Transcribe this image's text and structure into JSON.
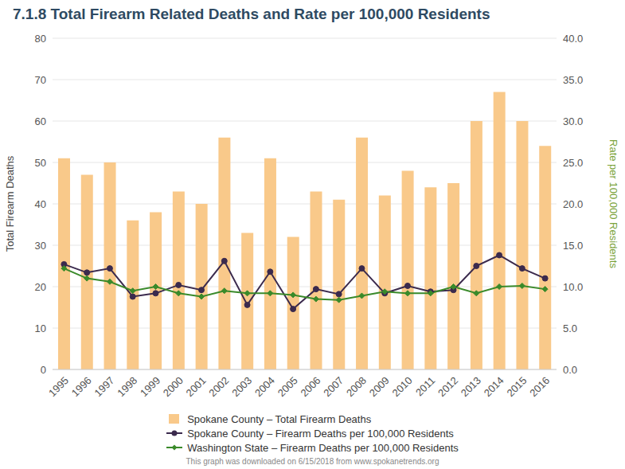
{
  "chart_data": {
    "type": "bar",
    "title": "7.1.8 Total Firearm Related Deaths and Rate per 100,000 Residents",
    "categories": [
      "1995",
      "1996",
      "1997",
      "1998",
      "1999",
      "2000",
      "2001",
      "2002",
      "2003",
      "2004",
      "2005",
      "2006",
      "2007",
      "2008",
      "2009",
      "2010",
      "2011",
      "2012",
      "2013",
      "2014",
      "2015",
      "2016"
    ],
    "ylabel": "Total Firearm Deaths",
    "y2label": "Rate per 100,000 Residents",
    "ylim": [
      0,
      80
    ],
    "yticks": [
      0,
      10,
      20,
      30,
      40,
      50,
      60,
      70,
      80
    ],
    "y2lim": [
      0,
      40
    ],
    "y2ticks": [
      {
        "value": 0,
        "label": "0.0"
      },
      {
        "value": 5,
        "label": "5.0"
      },
      {
        "value": 10,
        "label": "10.0"
      },
      {
        "value": 15,
        "label": "15.0"
      },
      {
        "value": 20,
        "label": "20.0"
      },
      {
        "value": 25,
        "label": "25.0"
      },
      {
        "value": 30,
        "label": "30.0"
      },
      {
        "value": 35,
        "label": "35.0"
      },
      {
        "value": 40,
        "label": "40.0"
      }
    ],
    "grid": true,
    "series": [
      {
        "name": "Spokane County – Total Firearm Deaths",
        "type": "bar",
        "color": "#f9c98a",
        "values": [
          51,
          47,
          50,
          36,
          38,
          43,
          40,
          56,
          33,
          51,
          32,
          43,
          41,
          56,
          42,
          48,
          44,
          45,
          60,
          67,
          60,
          54
        ]
      },
      {
        "name": "Spokane County – Firearm Deaths per 100,000 Residents",
        "type": "line",
        "axis": "y2",
        "color": "#3b2a4d",
        "marker": "circle",
        "values": [
          12.7,
          11.7,
          12.2,
          8.8,
          9.2,
          10.2,
          9.6,
          13.1,
          7.8,
          11.8,
          7.3,
          9.7,
          9.1,
          12.2,
          9.2,
          10.1,
          9.4,
          9.6,
          12.5,
          13.8,
          12.2,
          11.0
        ]
      },
      {
        "name": "Washington State – Firearm Deaths per 100,000 Residents",
        "type": "line",
        "axis": "y2",
        "color": "#3a8a2a",
        "marker": "diamond",
        "values": [
          12.2,
          11.0,
          10.6,
          9.5,
          10.0,
          9.2,
          8.8,
          9.5,
          9.2,
          9.2,
          9.0,
          8.5,
          8.4,
          8.9,
          9.4,
          9.2,
          9.2,
          10.0,
          9.2,
          10.0,
          10.1,
          9.7
        ]
      }
    ],
    "note": "This graph was downloaded on 6/15/2018 from www.spokanetrends.org"
  }
}
